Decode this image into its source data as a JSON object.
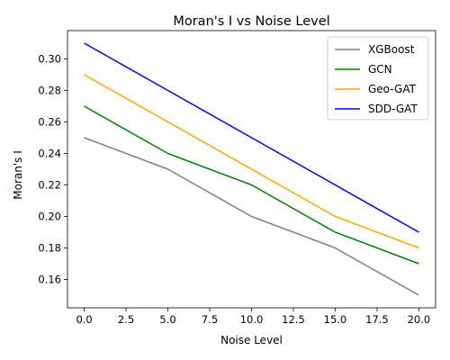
{
  "chart_data": {
    "type": "line",
    "title": "Moran's I vs Noise Level",
    "xlabel": "Noise Level",
    "ylabel": "Moran's I",
    "x": [
      0,
      5,
      10,
      15,
      20
    ],
    "xlim": [
      -1,
      21
    ],
    "ylim": [
      0.142,
      0.318
    ],
    "xticks": [
      0.0,
      2.5,
      5.0,
      7.5,
      10.0,
      12.5,
      15.0,
      17.5,
      20.0
    ],
    "xtick_labels": [
      "0.0",
      "2.5",
      "5.0",
      "7.5",
      "10.0",
      "12.5",
      "15.0",
      "17.5",
      "20.0"
    ],
    "yticks": [
      0.16,
      0.18,
      0.2,
      0.22,
      0.24,
      0.26,
      0.28,
      0.3
    ],
    "ytick_labels": [
      "0.16",
      "0.18",
      "0.20",
      "0.22",
      "0.24",
      "0.26",
      "0.28",
      "0.30"
    ],
    "grid": false,
    "legend_position": "top-right",
    "series": [
      {
        "name": "XGBoost",
        "color": "#808080",
        "values": [
          0.25,
          0.23,
          0.2,
          0.18,
          0.15
        ]
      },
      {
        "name": "GCN",
        "color": "#008000",
        "values": [
          0.27,
          0.24,
          0.22,
          0.19,
          0.17
        ]
      },
      {
        "name": "Geo-GAT",
        "color": "#ffa500",
        "values": [
          0.29,
          0.26,
          0.23,
          0.2,
          0.18
        ]
      },
      {
        "name": "SDD-GAT",
        "color": "#0000ff",
        "values": [
          0.31,
          0.28,
          0.25,
          0.22,
          0.19
        ]
      }
    ]
  }
}
